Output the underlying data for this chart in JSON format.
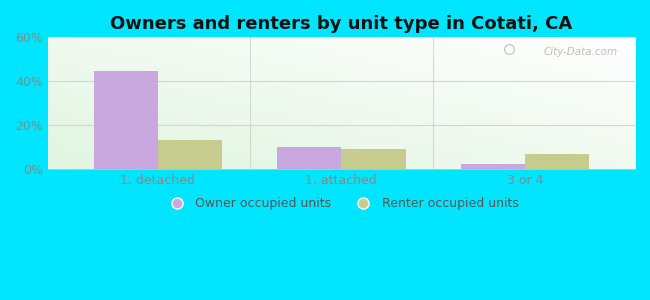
{
  "title": "Owners and renters by unit type in Cotati, CA",
  "categories": [
    "1, detached",
    "1, attached",
    "3 or 4"
  ],
  "owner_values": [
    44.5,
    10.0,
    2.0
  ],
  "renter_values": [
    13.0,
    9.0,
    7.0
  ],
  "owner_color": "#c9a8e0",
  "renter_color": "#c5cc8e",
  "ylim": [
    0,
    60
  ],
  "yticks": [
    0,
    20,
    40,
    60
  ],
  "ytick_labels": [
    "0%",
    "20%",
    "40%",
    "60%"
  ],
  "outer_bg": "#00e5ff",
  "bar_width": 0.35,
  "legend_owner": "Owner occupied units",
  "legend_renter": "Renter occupied units",
  "watermark": "City-Data.com",
  "grid_color": "#e8f0e0",
  "tick_color": "#888888",
  "title_fontsize": 13,
  "axis_fontsize": 9
}
